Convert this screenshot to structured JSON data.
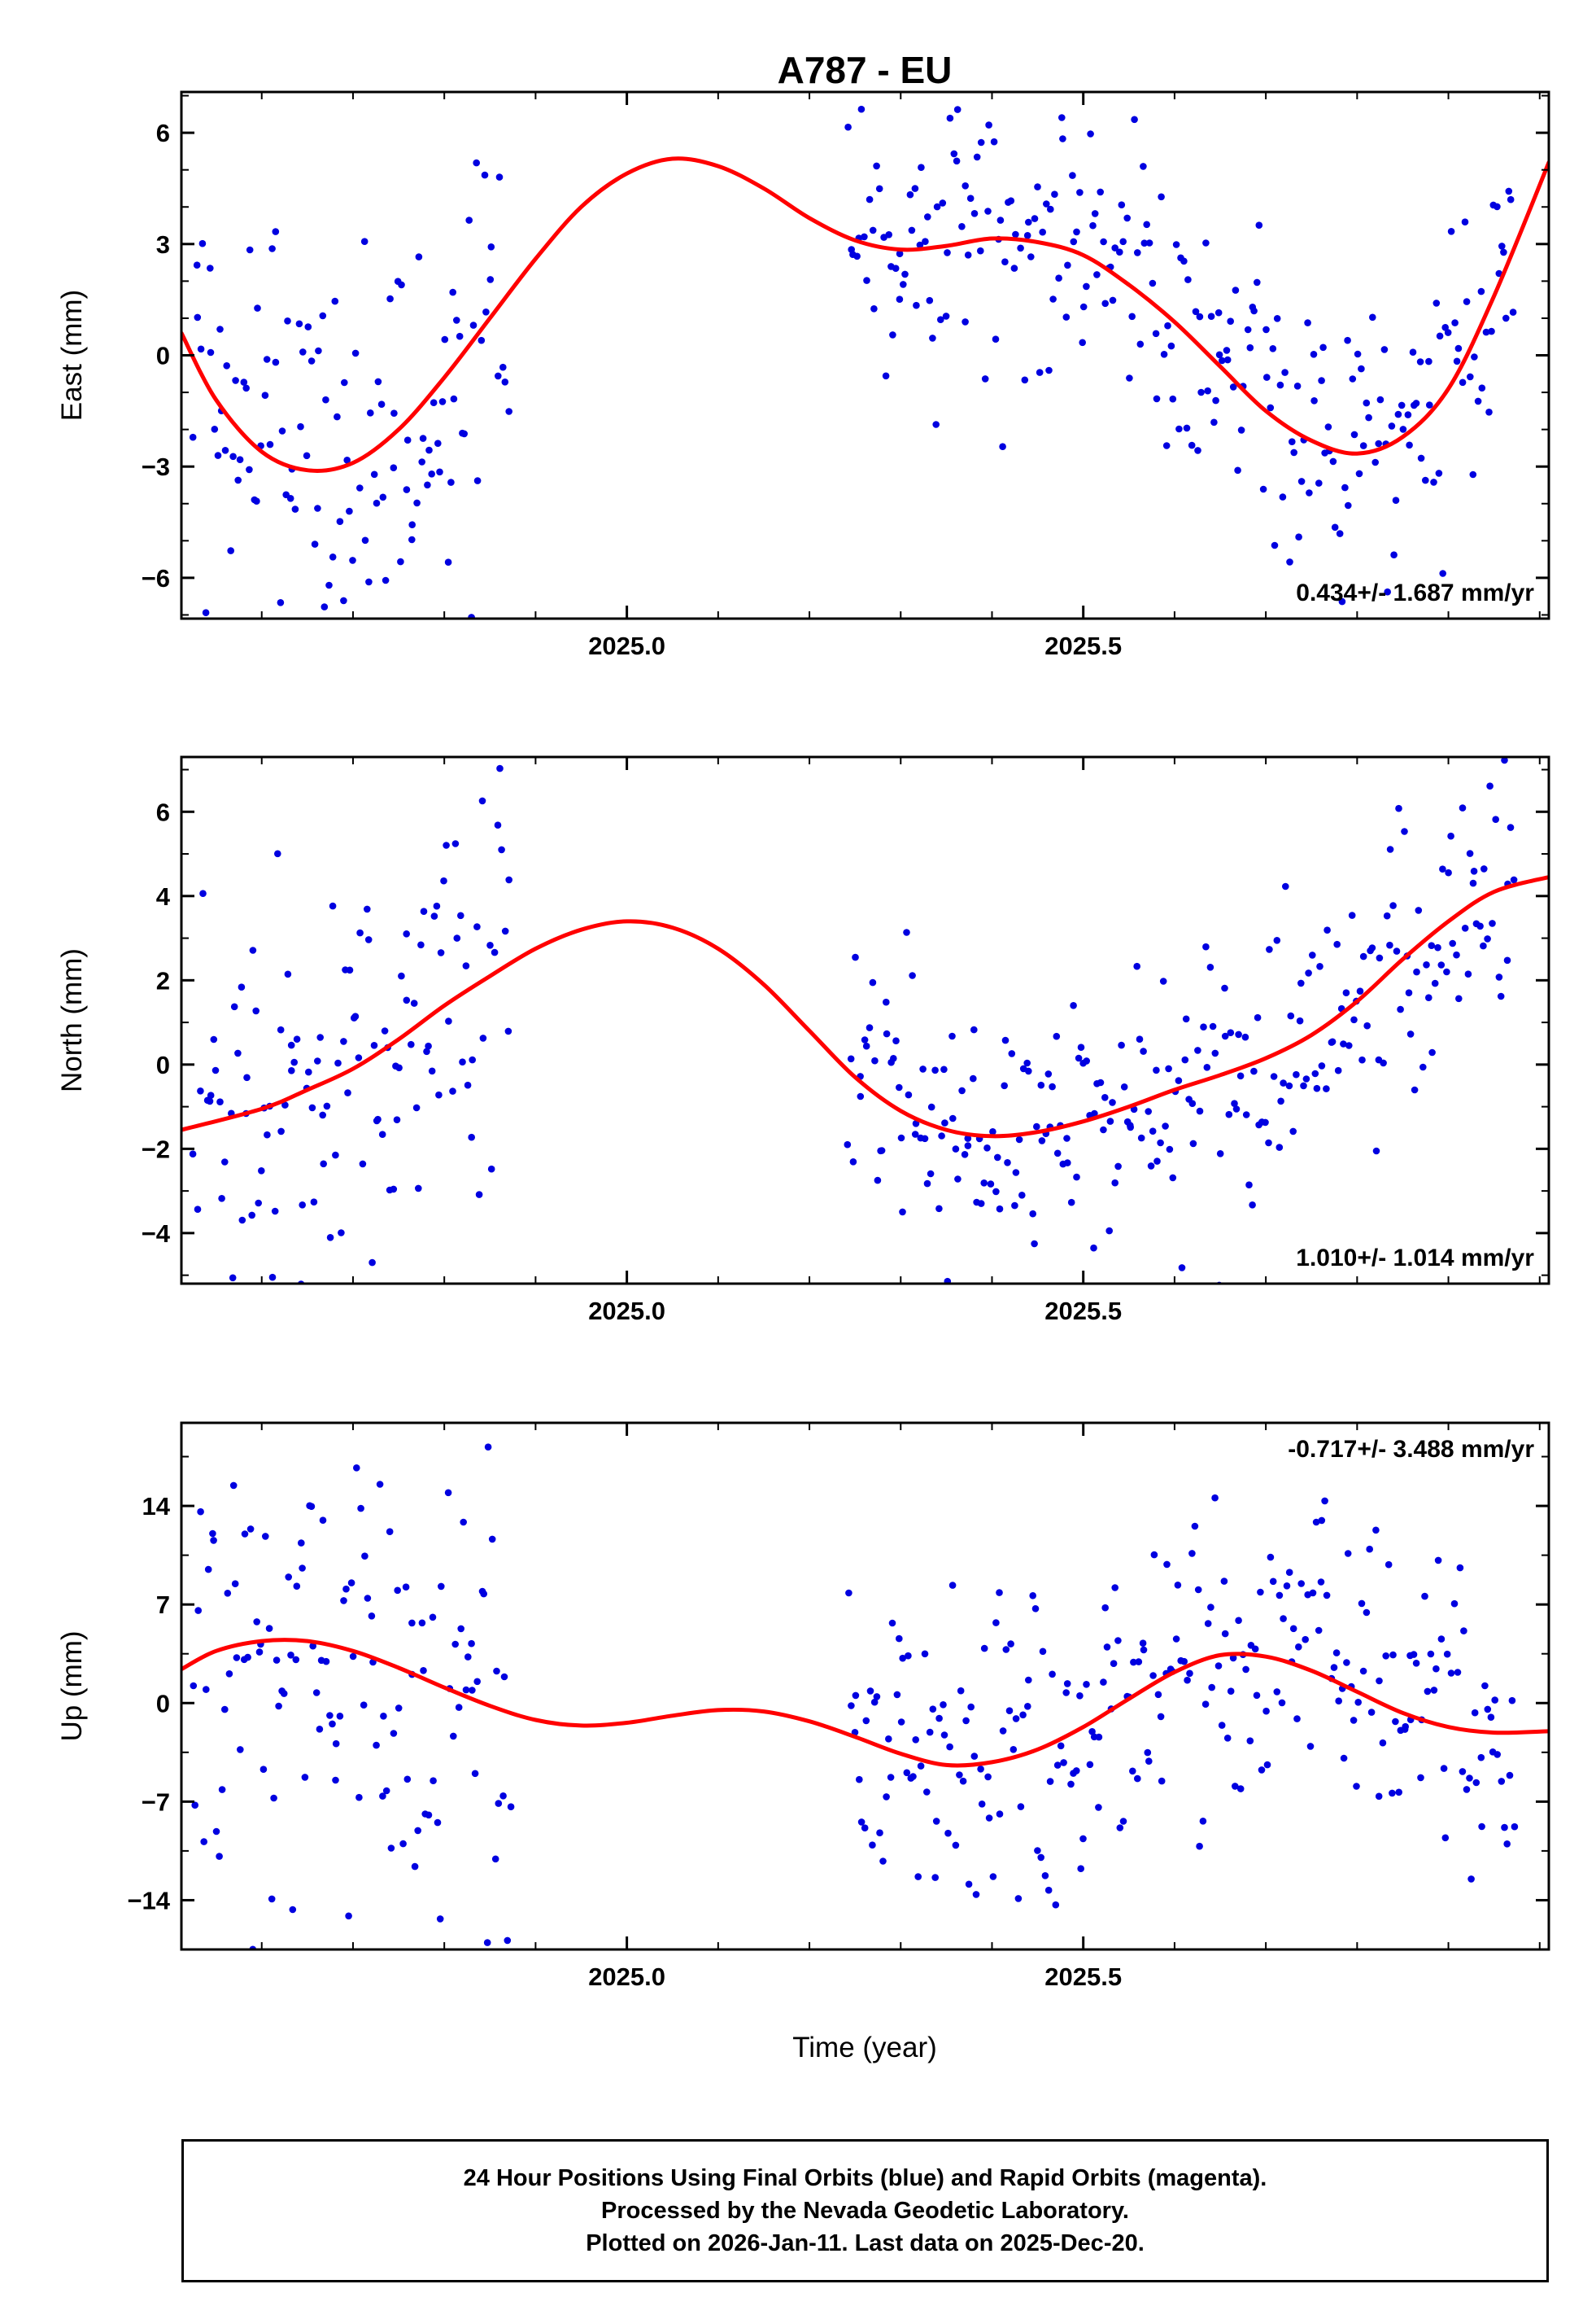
{
  "title": "A787 - EU",
  "xlabel": "Time (year)",
  "colors": {
    "points": "#0000e0",
    "trend": "#ff0000",
    "frame": "#000000",
    "background": "#ffffff"
  },
  "footer": {
    "line1": "24 Hour Positions Using Final Orbits (blue) and Rapid Orbits (magenta).",
    "line2": "Processed by the Nevada Geodetic Laboratory.",
    "line3": "Plotted on 2026-Jan-11. Last data on 2025-Dec-20."
  },
  "chart_data": {
    "type": "scatter",
    "title": "A787 - EU",
    "x_axis": {
      "label": "Time (year)",
      "xlim": [
        2024.512,
        2026.01
      ],
      "ticks": [
        {
          "v": 2025.0,
          "label": "2025.0"
        },
        {
          "v": 2025.5,
          "label": "2025.5"
        }
      ],
      "minor_step": 0.1
    },
    "panels": [
      {
        "name": "east",
        "ylabel": "East (mm)",
        "ylim": [
          -7.1,
          7.1
        ],
        "yticks": [
          {
            "v": -6,
            "label": "−6"
          },
          {
            "v": -3,
            "label": "−3"
          },
          {
            "v": 0,
            "label": "0"
          },
          {
            "v": 3,
            "label": "3"
          },
          {
            "v": 6,
            "label": "6"
          }
        ],
        "minor_step": 1,
        "annotation": {
          "text": "0.434+/- 1.687 mm/yr",
          "position": "bottom-right"
        },
        "rate_mm_per_yr": 0.434,
        "rate_uncertainty_mm_per_yr": 1.687,
        "trend_line": [
          [
            2024.512,
            0.6
          ],
          [
            2024.55,
            -1.2
          ],
          [
            2024.6,
            -2.6
          ],
          [
            2024.65,
            -3.1
          ],
          [
            2024.7,
            -2.9
          ],
          [
            2024.75,
            -2.0
          ],
          [
            2024.8,
            -0.6
          ],
          [
            2024.85,
            1.0
          ],
          [
            2024.9,
            2.6
          ],
          [
            2024.95,
            4.0
          ],
          [
            2025.0,
            4.9
          ],
          [
            2025.05,
            5.3
          ],
          [
            2025.1,
            5.1
          ],
          [
            2025.15,
            4.5
          ],
          [
            2025.2,
            3.7
          ],
          [
            2025.25,
            3.1
          ],
          [
            2025.3,
            2.85
          ],
          [
            2025.35,
            2.95
          ],
          [
            2025.4,
            3.15
          ],
          [
            2025.45,
            3.05
          ],
          [
            2025.5,
            2.7
          ],
          [
            2025.55,
            1.9
          ],
          [
            2025.6,
            0.9
          ],
          [
            2025.65,
            -0.3
          ],
          [
            2025.7,
            -1.5
          ],
          [
            2025.75,
            -2.3
          ],
          [
            2025.8,
            -2.65
          ],
          [
            2025.85,
            -2.2
          ],
          [
            2025.9,
            -0.9
          ],
          [
            2025.95,
            1.6
          ],
          [
            2026.01,
            5.2
          ]
        ],
        "scatter_model": {
          "note": "blue 24h daily positions, values estimated as trend(x) plus gaussian scatter",
          "segments": [
            {
              "x0": 2024.525,
              "x1": 2024.872,
              "n": 122,
              "sigma": 2.7,
              "seed": 314
            },
            {
              "x0": 2025.243,
              "x1": 2025.972,
              "n": 255,
              "sigma": 1.9,
              "seed": 159
            }
          ]
        }
      },
      {
        "name": "north",
        "ylabel": "North (mm)",
        "ylim": [
          -5.2,
          7.3
        ],
        "yticks": [
          {
            "v": -4,
            "label": "−4"
          },
          {
            "v": -2,
            "label": "−2"
          },
          {
            "v": 0,
            "label": "0"
          },
          {
            "v": 2,
            "label": "2"
          },
          {
            "v": 4,
            "label": "4"
          },
          {
            "v": 6,
            "label": "6"
          }
        ],
        "minor_step": 1,
        "annotation": {
          "text": "1.010+/- 1.014 mm/yr",
          "position": "bottom-right"
        },
        "rate_mm_per_yr": 1.01,
        "rate_uncertainty_mm_per_yr": 1.014,
        "trend_line": [
          [
            2024.512,
            -1.55
          ],
          [
            2024.6,
            -1.05
          ],
          [
            2024.65,
            -0.6
          ],
          [
            2024.7,
            -0.1
          ],
          [
            2024.75,
            0.6
          ],
          [
            2024.8,
            1.4
          ],
          [
            2024.85,
            2.1
          ],
          [
            2024.9,
            2.75
          ],
          [
            2024.95,
            3.2
          ],
          [
            2025.0,
            3.4
          ],
          [
            2025.05,
            3.25
          ],
          [
            2025.1,
            2.75
          ],
          [
            2025.15,
            1.9
          ],
          [
            2025.2,
            0.8
          ],
          [
            2025.25,
            -0.3
          ],
          [
            2025.3,
            -1.1
          ],
          [
            2025.35,
            -1.55
          ],
          [
            2025.4,
            -1.7
          ],
          [
            2025.45,
            -1.6
          ],
          [
            2025.5,
            -1.35
          ],
          [
            2025.55,
            -1.0
          ],
          [
            2025.6,
            -0.6
          ],
          [
            2025.65,
            -0.25
          ],
          [
            2025.7,
            0.15
          ],
          [
            2025.75,
            0.7
          ],
          [
            2025.8,
            1.5
          ],
          [
            2025.85,
            2.5
          ],
          [
            2025.9,
            3.4
          ],
          [
            2025.95,
            4.1
          ],
          [
            2026.01,
            4.45
          ]
        ],
        "scatter_model": {
          "note": "blue 24h daily positions, values estimated as trend(x) plus gaussian scatter",
          "segments": [
            {
              "x0": 2024.525,
              "x1": 2024.872,
              "n": 122,
              "sigma": 2.3,
              "seed": 271
            },
            {
              "x0": 2025.243,
              "x1": 2025.972,
              "n": 255,
              "sigma": 1.6,
              "seed": 828
            }
          ]
        }
      },
      {
        "name": "up",
        "ylabel": "Up (mm)",
        "ylim": [
          -17.5,
          19.9
        ],
        "yticks": [
          {
            "v": -14,
            "label": "−14"
          },
          {
            "v": -7,
            "label": "−7"
          },
          {
            "v": 0,
            "label": "0"
          },
          {
            "v": 7,
            "label": "7"
          },
          {
            "v": 14,
            "label": "14"
          }
        ],
        "minor_step": 3.5,
        "annotation": {
          "text": "-0.717+/- 3.488 mm/yr",
          "position": "top-right"
        },
        "rate_mm_per_yr": -0.717,
        "rate_uncertainty_mm_per_yr": 3.488,
        "trend_line": [
          [
            2024.512,
            2.4
          ],
          [
            2024.55,
            3.7
          ],
          [
            2024.6,
            4.4
          ],
          [
            2024.65,
            4.4
          ],
          [
            2024.7,
            3.7
          ],
          [
            2024.75,
            2.5
          ],
          [
            2024.8,
            1.1
          ],
          [
            2024.85,
            -0.2
          ],
          [
            2024.9,
            -1.2
          ],
          [
            2024.95,
            -1.6
          ],
          [
            2025.0,
            -1.4
          ],
          [
            2025.05,
            -0.9
          ],
          [
            2025.1,
            -0.5
          ],
          [
            2025.15,
            -0.6
          ],
          [
            2025.2,
            -1.3
          ],
          [
            2025.25,
            -2.4
          ],
          [
            2025.3,
            -3.6
          ],
          [
            2025.35,
            -4.4
          ],
          [
            2025.4,
            -4.2
          ],
          [
            2025.45,
            -3.3
          ],
          [
            2025.5,
            -1.7
          ],
          [
            2025.55,
            0.3
          ],
          [
            2025.6,
            2.2
          ],
          [
            2025.65,
            3.4
          ],
          [
            2025.7,
            3.3
          ],
          [
            2025.75,
            2.3
          ],
          [
            2025.8,
            0.8
          ],
          [
            2025.85,
            -0.7
          ],
          [
            2025.9,
            -1.7
          ],
          [
            2025.95,
            -2.1
          ],
          [
            2026.01,
            -2.0
          ]
        ],
        "scatter_model": {
          "note": "blue 24h daily positions, values estimated as trend(x) plus gaussian scatter",
          "segments": [
            {
              "x0": 2024.525,
              "x1": 2024.872,
              "n": 122,
              "sigma": 8.0,
              "seed": 653
            },
            {
              "x0": 2025.243,
              "x1": 2025.972,
              "n": 255,
              "sigma": 5.5,
              "seed": 589
            }
          ]
        }
      }
    ]
  }
}
